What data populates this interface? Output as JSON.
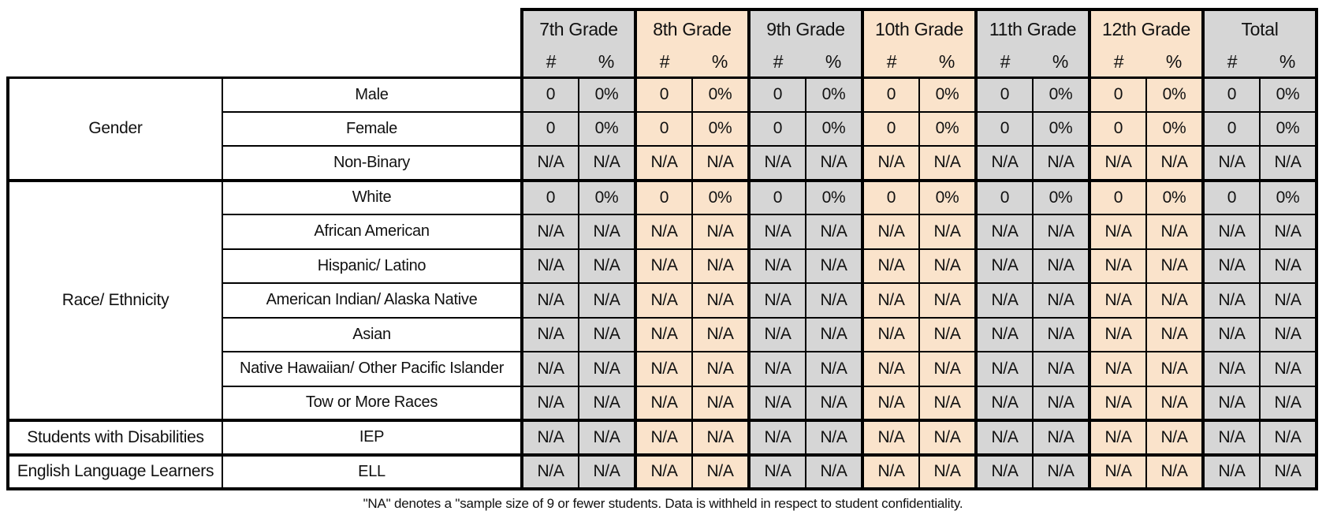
{
  "colors": {
    "group_gray": "#d6d6d6",
    "group_peach": "#fae3cb",
    "border": "#000000"
  },
  "header": {
    "groups": [
      {
        "label": "7th Grade",
        "tone": "gray"
      },
      {
        "label": "8th Grade",
        "tone": "peach"
      },
      {
        "label": "9th Grade",
        "tone": "gray"
      },
      {
        "label": "10th Grade",
        "tone": "peach"
      },
      {
        "label": "11th Grade",
        "tone": "gray"
      },
      {
        "label": "12th Grade",
        "tone": "peach"
      },
      {
        "label": "Total",
        "tone": "gray"
      }
    ],
    "count_label": "#",
    "percent_label": "%"
  },
  "sections": [
    {
      "label": "Gender",
      "rows": [
        {
          "label": "Male",
          "values": [
            "0",
            "0%",
            "0",
            "0%",
            "0",
            "0%",
            "0",
            "0%",
            "0",
            "0%",
            "0",
            "0%",
            "0",
            "0%"
          ]
        },
        {
          "label": "Female",
          "values": [
            "0",
            "0%",
            "0",
            "0%",
            "0",
            "0%",
            "0",
            "0%",
            "0",
            "0%",
            "0",
            "0%",
            "0",
            "0%"
          ]
        },
        {
          "label": "Non-Binary",
          "values": [
            "N/A",
            "N/A",
            "N/A",
            "N/A",
            "N/A",
            "N/A",
            "N/A",
            "N/A",
            "N/A",
            "N/A",
            "N/A",
            "N/A",
            "N/A",
            "N/A"
          ]
        }
      ]
    },
    {
      "label": "Race/ Ethnicity",
      "rows": [
        {
          "label": "White",
          "values": [
            "0",
            "0%",
            "0",
            "0%",
            "0",
            "0%",
            "0",
            "0%",
            "0",
            "0%",
            "0",
            "0%",
            "0",
            "0%"
          ]
        },
        {
          "label": "African American",
          "values": [
            "N/A",
            "N/A",
            "N/A",
            "N/A",
            "N/A",
            "N/A",
            "N/A",
            "N/A",
            "N/A",
            "N/A",
            "N/A",
            "N/A",
            "N/A",
            "N/A"
          ]
        },
        {
          "label": "Hispanic/ Latino",
          "values": [
            "N/A",
            "N/A",
            "N/A",
            "N/A",
            "N/A",
            "N/A",
            "N/A",
            "N/A",
            "N/A",
            "N/A",
            "N/A",
            "N/A",
            "N/A",
            "N/A"
          ]
        },
        {
          "label": "American Indian/ Alaska Native",
          "values": [
            "N/A",
            "N/A",
            "N/A",
            "N/A",
            "N/A",
            "N/A",
            "N/A",
            "N/A",
            "N/A",
            "N/A",
            "N/A",
            "N/A",
            "N/A",
            "N/A"
          ]
        },
        {
          "label": "Asian",
          "values": [
            "N/A",
            "N/A",
            "N/A",
            "N/A",
            "N/A",
            "N/A",
            "N/A",
            "N/A",
            "N/A",
            "N/A",
            "N/A",
            "N/A",
            "N/A",
            "N/A"
          ]
        },
        {
          "label": "Native Hawaiian/ Other Pacific Islander",
          "values": [
            "N/A",
            "N/A",
            "N/A",
            "N/A",
            "N/A",
            "N/A",
            "N/A",
            "N/A",
            "N/A",
            "N/A",
            "N/A",
            "N/A",
            "N/A",
            "N/A"
          ]
        },
        {
          "label": "Tow or More Races",
          "values": [
            "N/A",
            "N/A",
            "N/A",
            "N/A",
            "N/A",
            "N/A",
            "N/A",
            "N/A",
            "N/A",
            "N/A",
            "N/A",
            "N/A",
            "N/A",
            "N/A"
          ]
        }
      ]
    },
    {
      "label": "Students with Disabilities",
      "rows": [
        {
          "label": "IEP",
          "values": [
            "N/A",
            "N/A",
            "N/A",
            "N/A",
            "N/A",
            "N/A",
            "N/A",
            "N/A",
            "N/A",
            "N/A",
            "N/A",
            "N/A",
            "N/A",
            "N/A"
          ]
        }
      ]
    },
    {
      "label": "English Language Learners",
      "rows": [
        {
          "label": "ELL",
          "values": [
            "N/A",
            "N/A",
            "N/A",
            "N/A",
            "N/A",
            "N/A",
            "N/A",
            "N/A",
            "N/A",
            "N/A",
            "N/A",
            "N/A",
            "N/A",
            "N/A"
          ]
        }
      ]
    }
  ],
  "footnote": "\"NA\" denotes a \"sample size of 9 or fewer students. Data is withheld in respect to student confidentiality."
}
